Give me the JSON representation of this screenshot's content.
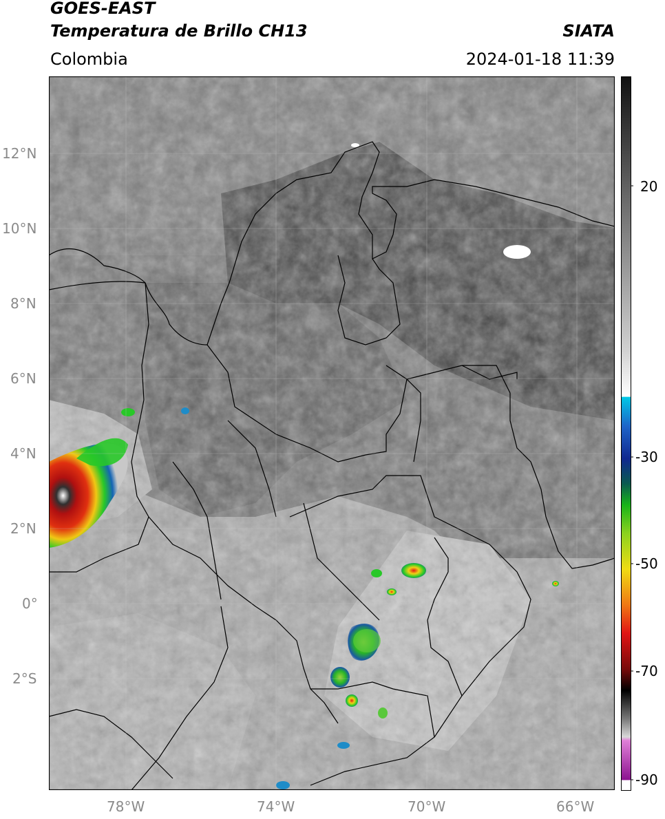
{
  "header": {
    "satellite": "GOES-EAST",
    "product": "Temperatura de Brillo CH13",
    "region": "Colombia",
    "source": "SIATA",
    "datetime": "2024-01-18 11:39"
  },
  "map": {
    "lat_ticks": [
      "12°N",
      "10°N",
      "8°N",
      "6°N",
      "4°N",
      "2°N",
      "0°",
      "2°S"
    ],
    "lon_ticks": [
      "78°W",
      "74°W",
      "70°W",
      "66°W"
    ],
    "grid": true
  },
  "colorbar": {
    "tick_labels": [
      "20",
      "-30",
      "-50",
      "-70",
      "-90"
    ],
    "colors": {
      "warm": "#8c8c8c",
      "cold_cyan": "#00c8e6",
      "blue": "#1428a0",
      "green": "#1ec81e",
      "yellow": "#f0dc14",
      "red": "#dc1414",
      "black": "#000000",
      "magenta": "#d250c8"
    }
  }
}
